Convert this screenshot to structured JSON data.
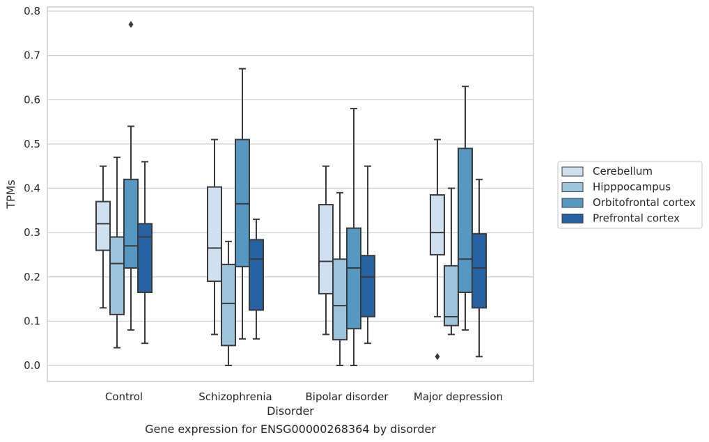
{
  "chart_data": {
    "type": "boxplot",
    "title": "",
    "xlabel": "Disorder",
    "ylabel": "TPMs",
    "caption": "Gene expression for ENSG00000268364 by disorder",
    "ylim": [
      -0.04,
      0.81
    ],
    "yticks": [
      0.0,
      0.1,
      0.2,
      0.3,
      0.4,
      0.5,
      0.6,
      0.7,
      0.8
    ],
    "ytick_labels": [
      "0.0",
      "0.1",
      "0.2",
      "0.3",
      "0.4",
      "0.5",
      "0.6",
      "0.7",
      "0.8"
    ],
    "grid": "horizontal",
    "legend_position": "right",
    "categories": [
      "Control",
      "Schizophrenia",
      "Bipolar disorder",
      "Major depression"
    ],
    "series": [
      {
        "name": "Cerebellum",
        "color": "#cfe0f0",
        "boxes": [
          {
            "whislo": 0.13,
            "q1": 0.26,
            "med": 0.32,
            "q3": 0.37,
            "whishi": 0.45,
            "fliers": []
          },
          {
            "whislo": 0.07,
            "q1": 0.19,
            "med": 0.265,
            "q3": 0.403,
            "whishi": 0.51,
            "fliers": []
          },
          {
            "whislo": 0.07,
            "q1": 0.162,
            "med": 0.235,
            "q3": 0.363,
            "whishi": 0.45,
            "fliers": []
          },
          {
            "whislo": 0.11,
            "q1": 0.25,
            "med": 0.3,
            "q3": 0.385,
            "whishi": 0.51,
            "fliers": [
              0.02
            ]
          }
        ]
      },
      {
        "name": "Hipppocampus",
        "color": "#9cc5dd",
        "boxes": [
          {
            "whislo": 0.04,
            "q1": 0.115,
            "med": 0.23,
            "q3": 0.29,
            "whishi": 0.47,
            "fliers": []
          },
          {
            "whislo": 0.0,
            "q1": 0.045,
            "med": 0.14,
            "q3": 0.228,
            "whishi": 0.28,
            "fliers": []
          },
          {
            "whislo": 0.0,
            "q1": 0.058,
            "med": 0.135,
            "q3": 0.24,
            "whishi": 0.39,
            "fliers": []
          },
          {
            "whislo": 0.07,
            "q1": 0.09,
            "med": 0.11,
            "q3": 0.225,
            "whishi": 0.4,
            "fliers": []
          }
        ]
      },
      {
        "name": "Orbitofrontal cortex",
        "color": "#5598c4",
        "boxes": [
          {
            "whislo": 0.08,
            "q1": 0.22,
            "med": 0.27,
            "q3": 0.42,
            "whishi": 0.54,
            "fliers": [
              0.77
            ]
          },
          {
            "whislo": 0.06,
            "q1": 0.223,
            "med": 0.365,
            "q3": 0.51,
            "whishi": 0.67,
            "fliers": []
          },
          {
            "whislo": 0.0,
            "q1": 0.083,
            "med": 0.22,
            "q3": 0.31,
            "whishi": 0.58,
            "fliers": []
          },
          {
            "whislo": 0.08,
            "q1": 0.165,
            "med": 0.24,
            "q3": 0.49,
            "whishi": 0.63,
            "fliers": []
          }
        ]
      },
      {
        "name": "Prefrontal cortex",
        "color": "#2663a4",
        "boxes": [
          {
            "whislo": 0.05,
            "q1": 0.165,
            "med": 0.29,
            "q3": 0.32,
            "whishi": 0.46,
            "fliers": []
          },
          {
            "whislo": 0.06,
            "q1": 0.125,
            "med": 0.24,
            "q3": 0.284,
            "whishi": 0.33,
            "fliers": []
          },
          {
            "whislo": 0.05,
            "q1": 0.11,
            "med": 0.2,
            "q3": 0.248,
            "whishi": 0.45,
            "fliers": []
          },
          {
            "whislo": 0.02,
            "q1": 0.13,
            "med": 0.22,
            "q3": 0.297,
            "whishi": 0.42,
            "fliers": []
          }
        ]
      }
    ]
  },
  "colors": {
    "grid": "#cccccc",
    "frame": "#cccccc",
    "edge": "#3a3a3a",
    "text": "#262626"
  }
}
